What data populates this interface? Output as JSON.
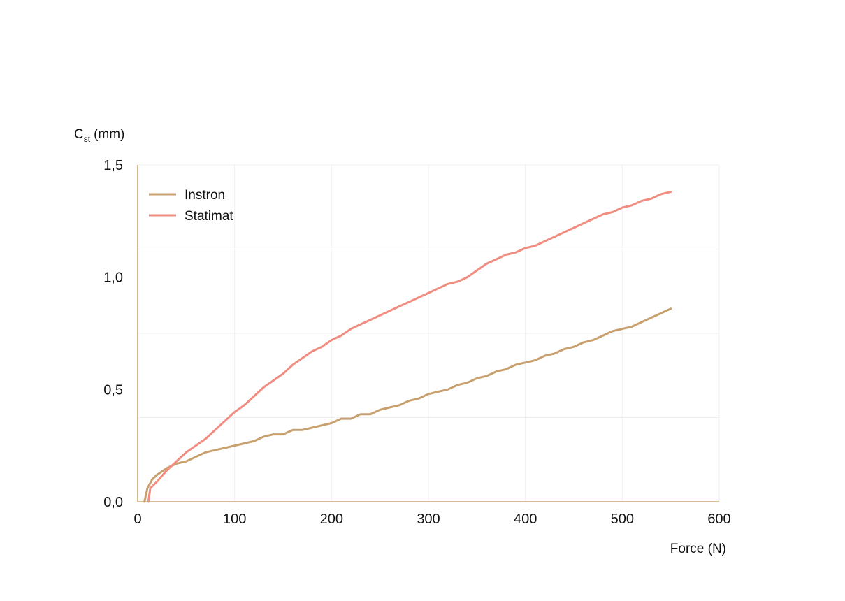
{
  "chart_data": {
    "type": "line",
    "title": "",
    "xlabel": "Force (N)",
    "ylabel": {
      "main": "C",
      "sub": "st",
      "unit": "(mm)"
    },
    "xlim": [
      0,
      600
    ],
    "ylim": [
      0,
      1.5
    ],
    "x_ticks": [
      {
        "value": 0,
        "label": "0"
      },
      {
        "value": 100,
        "label": "100"
      },
      {
        "value": 200,
        "label": "200"
      },
      {
        "value": 300,
        "label": "300"
      },
      {
        "value": 400,
        "label": "400"
      },
      {
        "value": 500,
        "label": "500"
      },
      {
        "value": 600,
        "label": "600"
      }
    ],
    "y_ticks": [
      {
        "value": 0,
        "label": "0,0"
      },
      {
        "value": 0.5,
        "label": "0,5"
      },
      {
        "value": 1.0,
        "label": "1,0"
      },
      {
        "value": 1.5,
        "label": "1,5"
      }
    ],
    "grid": true,
    "legend_position": "top-left",
    "series": [
      {
        "name": "Instron",
        "color": "#c8a06e",
        "points": [
          [
            7,
            0
          ],
          [
            10,
            0.06
          ],
          [
            15,
            0.1
          ],
          [
            20,
            0.12
          ],
          [
            30,
            0.15
          ],
          [
            40,
            0.17
          ],
          [
            50,
            0.18
          ],
          [
            60,
            0.2
          ],
          [
            70,
            0.22
          ],
          [
            80,
            0.23
          ],
          [
            90,
            0.24
          ],
          [
            100,
            0.25
          ],
          [
            110,
            0.26
          ],
          [
            120,
            0.27
          ],
          [
            130,
            0.29
          ],
          [
            140,
            0.3
          ],
          [
            150,
            0.3
          ],
          [
            160,
            0.32
          ],
          [
            170,
            0.32
          ],
          [
            180,
            0.33
          ],
          [
            190,
            0.34
          ],
          [
            200,
            0.35
          ],
          [
            210,
            0.37
          ],
          [
            220,
            0.37
          ],
          [
            230,
            0.39
          ],
          [
            240,
            0.39
          ],
          [
            250,
            0.41
          ],
          [
            260,
            0.42
          ],
          [
            270,
            0.43
          ],
          [
            280,
            0.45
          ],
          [
            290,
            0.46
          ],
          [
            300,
            0.48
          ],
          [
            310,
            0.49
          ],
          [
            320,
            0.5
          ],
          [
            330,
            0.52
          ],
          [
            340,
            0.53
          ],
          [
            350,
            0.55
          ],
          [
            360,
            0.56
          ],
          [
            370,
            0.58
          ],
          [
            380,
            0.59
          ],
          [
            390,
            0.61
          ],
          [
            400,
            0.62
          ],
          [
            410,
            0.63
          ],
          [
            420,
            0.65
          ],
          [
            430,
            0.66
          ],
          [
            440,
            0.68
          ],
          [
            450,
            0.69
          ],
          [
            460,
            0.71
          ],
          [
            470,
            0.72
          ],
          [
            480,
            0.74
          ],
          [
            490,
            0.76
          ],
          [
            500,
            0.77
          ],
          [
            510,
            0.78
          ],
          [
            520,
            0.8
          ],
          [
            530,
            0.82
          ],
          [
            540,
            0.84
          ],
          [
            550,
            0.86
          ]
        ]
      },
      {
        "name": "Statimat",
        "color": "#f08c80",
        "points": [
          [
            11,
            0
          ],
          [
            13,
            0.06
          ],
          [
            20,
            0.09
          ],
          [
            30,
            0.14
          ],
          [
            40,
            0.18
          ],
          [
            50,
            0.22
          ],
          [
            60,
            0.25
          ],
          [
            70,
            0.28
          ],
          [
            80,
            0.32
          ],
          [
            90,
            0.36
          ],
          [
            100,
            0.4
          ],
          [
            110,
            0.43
          ],
          [
            120,
            0.47
          ],
          [
            130,
            0.51
          ],
          [
            140,
            0.54
          ],
          [
            150,
            0.57
          ],
          [
            160,
            0.61
          ],
          [
            170,
            0.64
          ],
          [
            180,
            0.67
          ],
          [
            190,
            0.69
          ],
          [
            200,
            0.72
          ],
          [
            210,
            0.74
          ],
          [
            220,
            0.77
          ],
          [
            230,
            0.79
          ],
          [
            240,
            0.81
          ],
          [
            250,
            0.83
          ],
          [
            260,
            0.85
          ],
          [
            270,
            0.87
          ],
          [
            280,
            0.89
          ],
          [
            290,
            0.91
          ],
          [
            300,
            0.93
          ],
          [
            310,
            0.95
          ],
          [
            320,
            0.97
          ],
          [
            330,
            0.98
          ],
          [
            340,
            1.0
          ],
          [
            350,
            1.03
          ],
          [
            360,
            1.06
          ],
          [
            370,
            1.08
          ],
          [
            380,
            1.1
          ],
          [
            390,
            1.11
          ],
          [
            400,
            1.13
          ],
          [
            410,
            1.14
          ],
          [
            420,
            1.16
          ],
          [
            430,
            1.18
          ],
          [
            440,
            1.2
          ],
          [
            450,
            1.22
          ],
          [
            460,
            1.24
          ],
          [
            470,
            1.26
          ],
          [
            480,
            1.28
          ],
          [
            490,
            1.29
          ],
          [
            500,
            1.31
          ],
          [
            510,
            1.32
          ],
          [
            520,
            1.34
          ],
          [
            530,
            1.35
          ],
          [
            540,
            1.37
          ],
          [
            550,
            1.38
          ]
        ]
      }
    ]
  }
}
